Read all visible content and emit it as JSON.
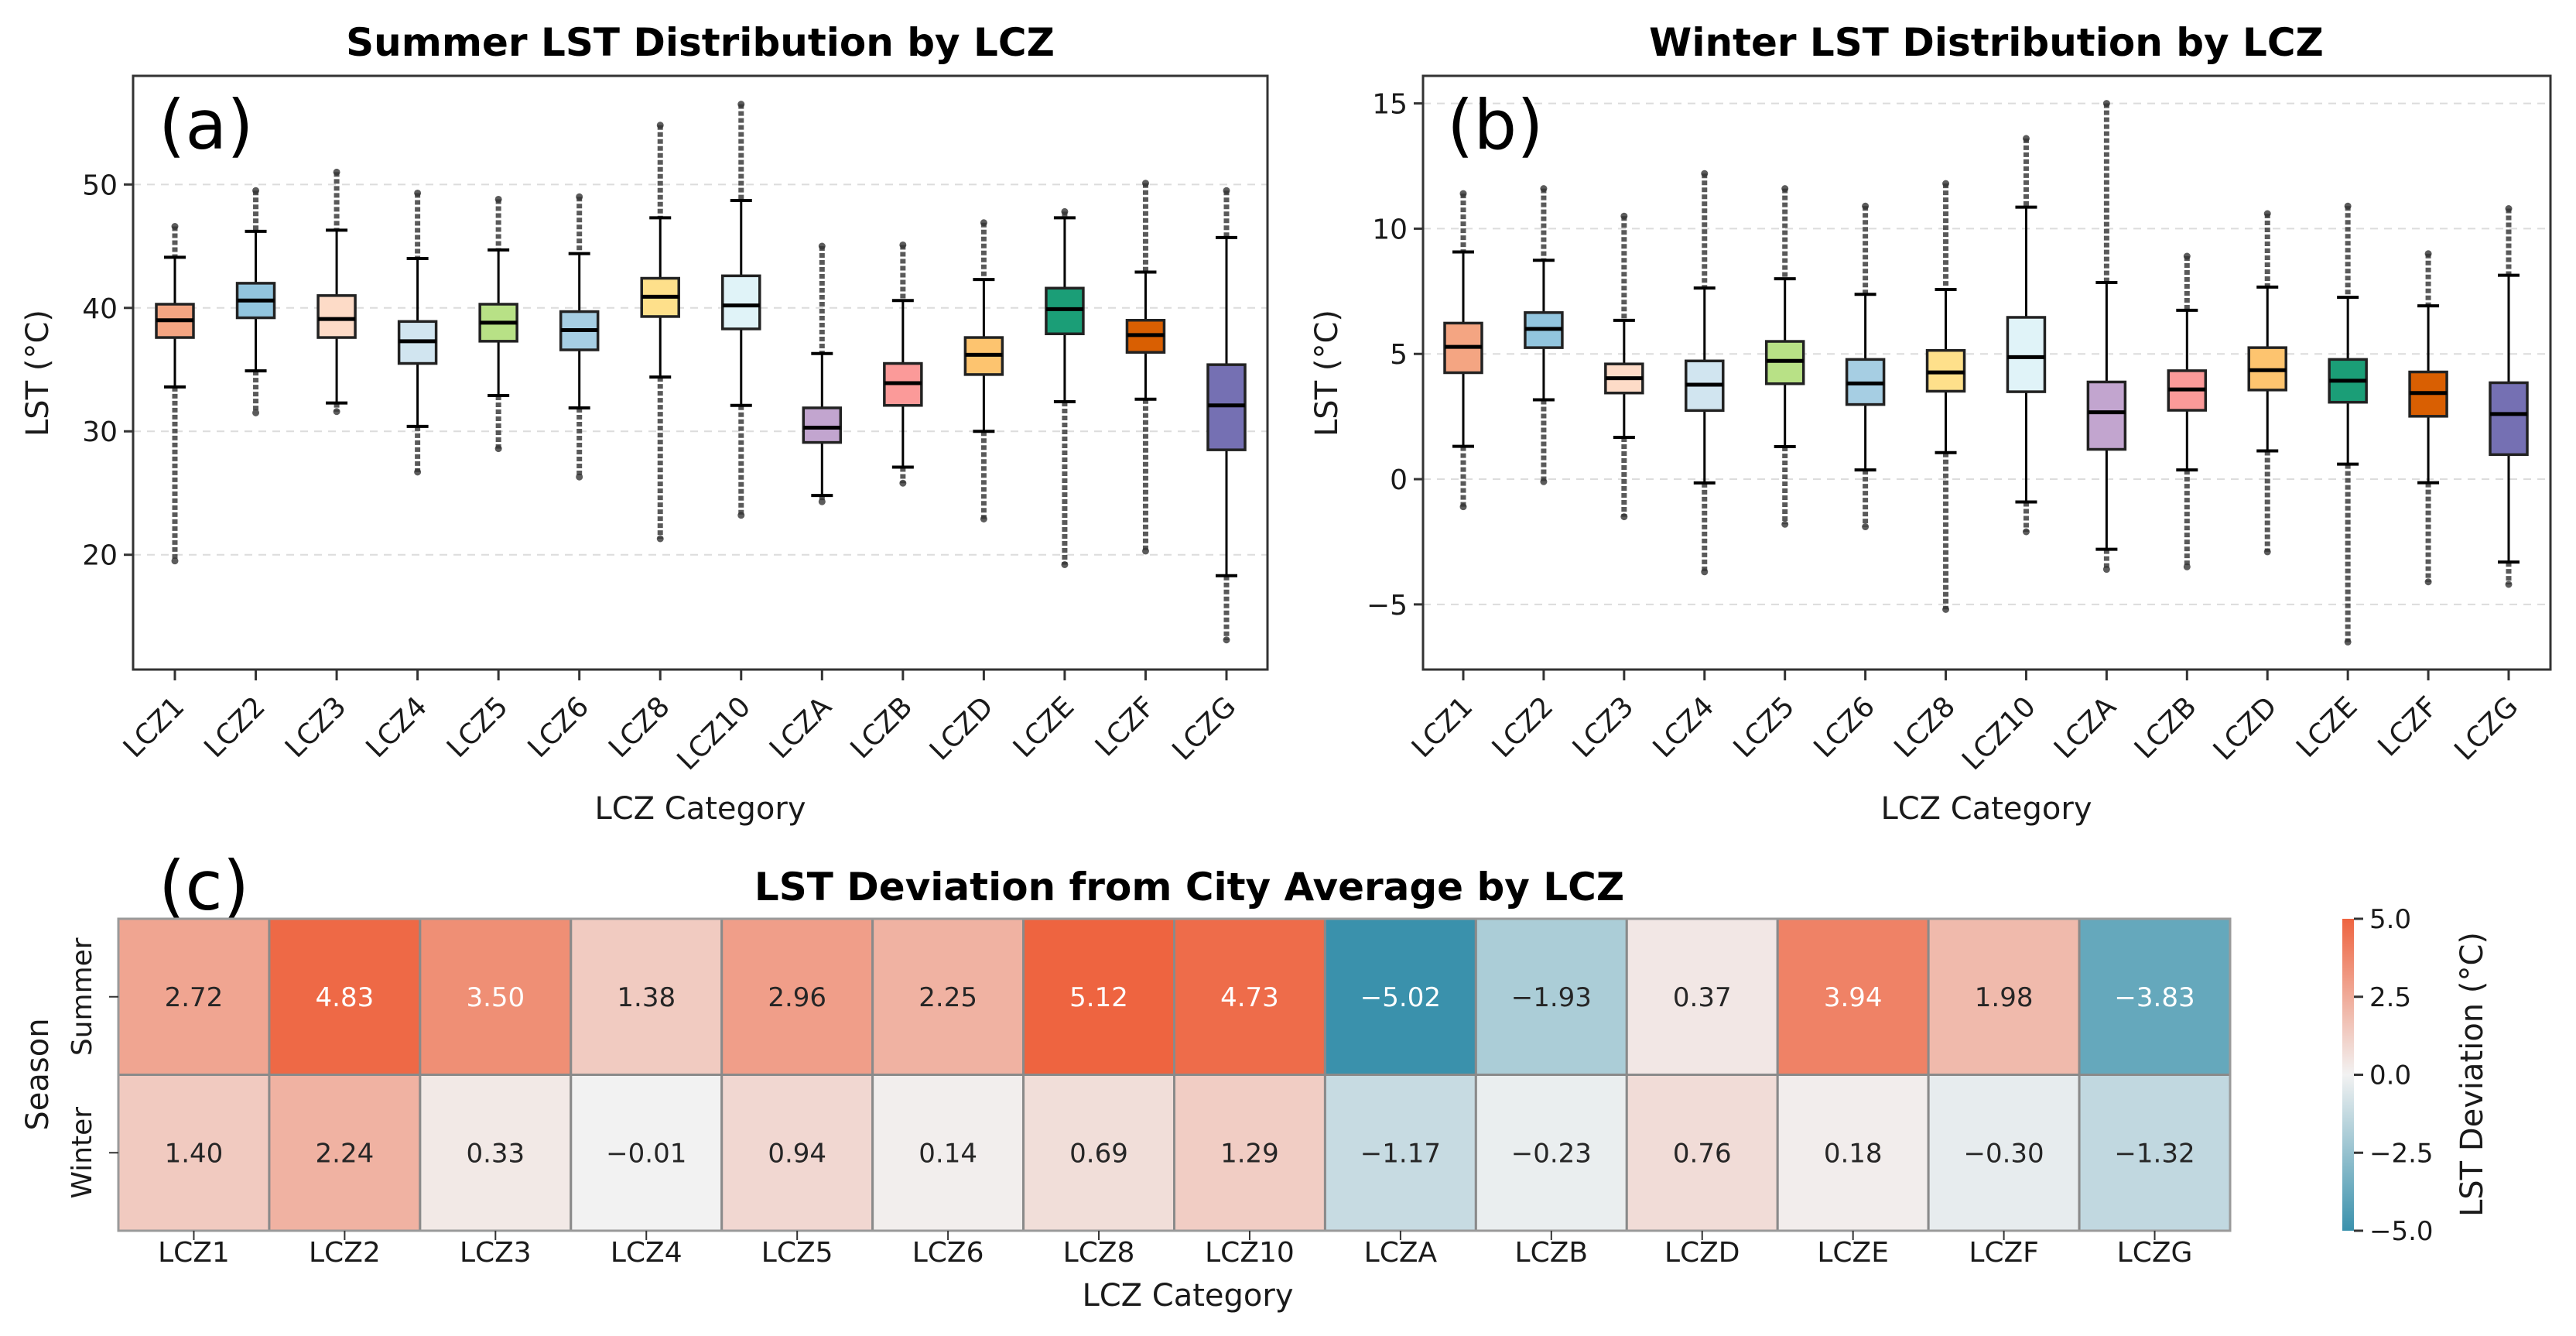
{
  "chart_data": [
    {
      "type": "box",
      "panel_label": "(a)",
      "title": "Summer LST Distribution by LCZ",
      "xlabel": "LCZ Category",
      "ylabel": "LST (°C)",
      "ylim": [
        10.7,
        58.8
      ],
      "yticks": [
        20,
        30,
        40,
        50
      ],
      "grid": "y-dashed",
      "categories": [
        "LCZ1",
        "LCZ2",
        "LCZ3",
        "LCZ4",
        "LCZ5",
        "LCZ6",
        "LCZ8",
        "LCZ10",
        "LCZA",
        "LCZB",
        "LCZD",
        "LCZE",
        "LCZF",
        "LCZG"
      ],
      "colors": [
        "#F4A582",
        "#92C5DE",
        "#FDDBC7",
        "#D1E5F0",
        "#B8E186",
        "#A6CEE3",
        "#FEE08B",
        "#E0F3F8",
        "#C2A5CF",
        "#FB9A99",
        "#FDC46F",
        "#1B9E77",
        "#D95F02",
        "#7570B3"
      ],
      "boxes": [
        {
          "q1": 37.6,
          "median": 39.0,
          "q3": 40.3,
          "whislo": 33.6,
          "whishi": 44.1,
          "flier_lo": 19.5,
          "flier_hi": 46.6
        },
        {
          "q1": 39.2,
          "median": 40.6,
          "q3": 42.0,
          "whislo": 34.9,
          "whishi": 46.2,
          "flier_lo": 31.5,
          "flier_hi": 49.5
        },
        {
          "q1": 37.6,
          "median": 39.1,
          "q3": 41.0,
          "whislo": 32.3,
          "whishi": 46.3,
          "flier_lo": 31.6,
          "flier_hi": 51.0
        },
        {
          "q1": 35.5,
          "median": 37.3,
          "q3": 38.9,
          "whislo": 30.4,
          "whishi": 44.0,
          "flier_lo": 26.7,
          "flier_hi": 49.3
        },
        {
          "q1": 37.3,
          "median": 38.8,
          "q3": 40.3,
          "whislo": 32.9,
          "whishi": 44.7,
          "flier_lo": 28.6,
          "flier_hi": 48.8
        },
        {
          "q1": 36.6,
          "median": 38.2,
          "q3": 39.7,
          "whislo": 31.9,
          "whishi": 44.4,
          "flier_lo": 26.3,
          "flier_hi": 49.0
        },
        {
          "q1": 39.3,
          "median": 40.9,
          "q3": 42.4,
          "whislo": 34.4,
          "whishi": 47.3,
          "flier_lo": 21.3,
          "flier_hi": 54.8
        },
        {
          "q1": 38.3,
          "median": 40.2,
          "q3": 42.6,
          "whislo": 32.1,
          "whishi": 48.7,
          "flier_lo": 23.2,
          "flier_hi": 56.5
        },
        {
          "q1": 29.1,
          "median": 30.3,
          "q3": 31.9,
          "whislo": 24.8,
          "whishi": 36.3,
          "flier_lo": 24.3,
          "flier_hi": 45.0
        },
        {
          "q1": 32.1,
          "median": 33.9,
          "q3": 35.5,
          "whislo": 27.1,
          "whishi": 40.6,
          "flier_lo": 25.8,
          "flier_hi": 45.1
        },
        {
          "q1": 34.6,
          "median": 36.2,
          "q3": 37.6,
          "whislo": 30.0,
          "whishi": 42.3,
          "flier_lo": 22.9,
          "flier_hi": 46.9
        },
        {
          "q1": 37.9,
          "median": 39.9,
          "q3": 41.6,
          "whislo": 32.4,
          "whishi": 47.3,
          "flier_lo": 19.2,
          "flier_hi": 47.8
        },
        {
          "q1": 36.4,
          "median": 37.8,
          "q3": 39.0,
          "whislo": 32.6,
          "whishi": 42.9,
          "flier_lo": 20.3,
          "flier_hi": 50.1
        },
        {
          "q1": 28.5,
          "median": 32.1,
          "q3": 35.4,
          "whislo": 18.3,
          "whishi": 45.7,
          "flier_lo": 13.1,
          "flier_hi": 49.5
        }
      ]
    },
    {
      "type": "box",
      "panel_label": "(b)",
      "title": "Winter LST Distribution by LCZ",
      "xlabel": "LCZ Category",
      "ylabel": "LST (°C)",
      "ylim": [
        -7.6,
        16.1
      ],
      "yticks": [
        -5,
        0,
        5,
        10,
        15
      ],
      "grid": "y-dashed",
      "categories": [
        "LCZ1",
        "LCZ2",
        "LCZ3",
        "LCZ4",
        "LCZ5",
        "LCZ6",
        "LCZ8",
        "LCZ10",
        "LCZA",
        "LCZB",
        "LCZD",
        "LCZE",
        "LCZF",
        "LCZG"
      ],
      "colors": [
        "#F4A582",
        "#92C5DE",
        "#FDDBC7",
        "#D1E5F0",
        "#B8E186",
        "#A6CEE3",
        "#FEE08B",
        "#E0F3F8",
        "#C2A5CF",
        "#FB9A99",
        "#FDC46F",
        "#1B9E77",
        "#D95F02",
        "#7570B3"
      ],
      "boxes": [
        {
          "q1": 4.25,
          "median": 5.28,
          "q3": 6.23,
          "whislo": 1.31,
          "whishi": 9.07,
          "flier_lo": -1.1,
          "flier_hi": 11.4
        },
        {
          "q1": 5.25,
          "median": 6.0,
          "q3": 6.65,
          "whislo": 3.17,
          "whishi": 8.74,
          "flier_lo": -0.1,
          "flier_hi": 11.6
        },
        {
          "q1": 3.44,
          "median": 4.03,
          "q3": 4.6,
          "whislo": 1.67,
          "whishi": 6.34,
          "flier_lo": -1.5,
          "flier_hi": 10.5
        },
        {
          "q1": 2.74,
          "median": 3.77,
          "q3": 4.72,
          "whislo": -0.15,
          "whishi": 7.63,
          "flier_lo": -3.7,
          "flier_hi": 12.2
        },
        {
          "q1": 3.81,
          "median": 4.72,
          "q3": 5.5,
          "whislo": 1.3,
          "whishi": 8.0,
          "flier_lo": -1.8,
          "flier_hi": 11.6
        },
        {
          "q1": 2.98,
          "median": 3.82,
          "q3": 4.78,
          "whislo": 0.37,
          "whishi": 7.38,
          "flier_lo": -1.9,
          "flier_hi": 10.9
        },
        {
          "q1": 3.51,
          "median": 4.26,
          "q3": 5.14,
          "whislo": 1.06,
          "whishi": 7.57,
          "flier_lo": -5.2,
          "flier_hi": 11.8
        },
        {
          "q1": 3.49,
          "median": 4.87,
          "q3": 6.46,
          "whislo": -0.91,
          "whishi": 10.86,
          "flier_lo": -2.1,
          "flier_hi": 13.6
        },
        {
          "q1": 1.19,
          "median": 2.67,
          "q3": 3.88,
          "whislo": -2.8,
          "whishi": 7.85,
          "flier_lo": -3.6,
          "flier_hi": 15.0
        },
        {
          "q1": 2.75,
          "median": 3.58,
          "q3": 4.33,
          "whislo": 0.37,
          "whishi": 6.74,
          "flier_lo": -3.5,
          "flier_hi": 8.9
        },
        {
          "q1": 3.56,
          "median": 4.35,
          "q3": 5.25,
          "whislo": 1.13,
          "whishi": 7.67,
          "flier_lo": -2.9,
          "flier_hi": 10.6
        },
        {
          "q1": 3.07,
          "median": 3.93,
          "q3": 4.78,
          "whislo": 0.6,
          "whishi": 7.26,
          "flier_lo": -6.5,
          "flier_hi": 10.9
        },
        {
          "q1": 2.51,
          "median": 3.44,
          "q3": 4.28,
          "whislo": -0.14,
          "whishi": 6.92,
          "flier_lo": -4.1,
          "flier_hi": 9.0
        },
        {
          "q1": 0.98,
          "median": 2.6,
          "q3": 3.85,
          "whislo": -3.31,
          "whishi": 8.14,
          "flier_lo": -4.2,
          "flier_hi": 10.8
        }
      ]
    },
    {
      "type": "heatmap",
      "panel_label": "(c)",
      "title": "LST Deviation from City Average by LCZ",
      "xlabel": "LCZ Category",
      "ylabel": "Season",
      "rows": [
        "Summer",
        "Winter"
      ],
      "columns": [
        "LCZ1",
        "LCZ2",
        "LCZ3",
        "LCZ4",
        "LCZ5",
        "LCZ6",
        "LCZ8",
        "LCZ10",
        "LCZA",
        "LCZB",
        "LCZD",
        "LCZE",
        "LCZF",
        "LCZG"
      ],
      "values": [
        [
          2.72,
          4.83,
          3.5,
          1.38,
          2.96,
          2.25,
          5.12,
          4.73,
          -5.02,
          -1.93,
          0.37,
          3.94,
          1.98,
          -3.83
        ],
        [
          1.4,
          2.24,
          0.33,
          -0.01,
          0.94,
          0.14,
          0.69,
          1.29,
          -1.17,
          -0.23,
          0.76,
          0.18,
          -0.3,
          -1.32
        ]
      ],
      "labels": [
        [
          "2.72",
          "4.83",
          "3.50",
          "1.38",
          "2.96",
          "2.25",
          "5.12",
          "4.73",
          "−5.02",
          "−1.93",
          "0.37",
          "3.94",
          "1.98",
          "−3.83"
        ],
        [
          "1.40",
          "2.24",
          "0.33",
          "−0.01",
          "0.94",
          "0.14",
          "0.69",
          "1.29",
          "−1.17",
          "−0.23",
          "0.76",
          "0.18",
          "−0.30",
          "−1.32"
        ]
      ],
      "colorbar": {
        "label": "LST Deviation (°C)",
        "vmin": -5.0,
        "vmax": 5.0,
        "ticks": [
          5.0,
          2.5,
          0.0,
          -2.5,
          -5.0
        ],
        "tick_labels": [
          "5.0",
          "2.5",
          "0.0",
          "−2.5",
          "−5.0"
        ],
        "cmap_low": "#3A91AC",
        "cmap_mid": "#F2F2F2",
        "cmap_high": "#EE6440"
      }
    }
  ]
}
